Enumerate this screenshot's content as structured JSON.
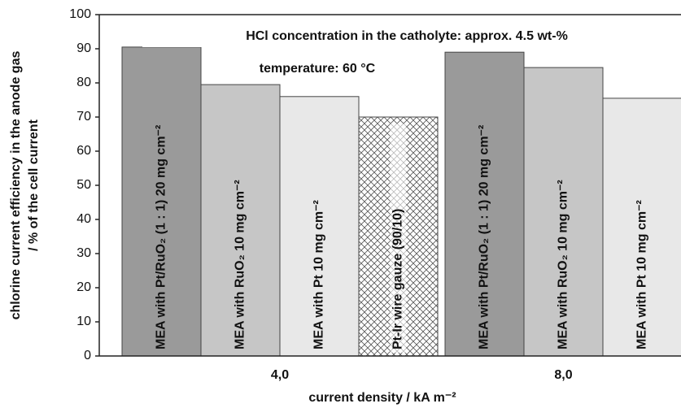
{
  "chart_data": {
    "type": "bar",
    "categories": [
      "4,0",
      "8,0"
    ],
    "series": [
      {
        "name": "MEA with Pt/RuO₂ (1 : 1) 20 mg cm⁻²",
        "color": "#9a9a9a",
        "values": [
          90.5,
          89
        ]
      },
      {
        "name": "MEA with RuO₂  10 mg cm⁻²",
        "color": "#c6c6c6",
        "values": [
          79.5,
          84.5
        ]
      },
      {
        "name": "MEA with Pt  10 mg cm⁻²",
        "color": "#e8e8e8",
        "values": [
          76,
          75.5
        ]
      },
      {
        "name": "Pt-Ir wire gauze (90/10)",
        "color": "#ffffff",
        "hatch": true,
        "values": [
          70,
          null
        ]
      }
    ],
    "xlabel": "current density  / kA m⁻²",
    "ylabel": [
      "chlorine current efficiency in the anode gas",
      "/ % of the cell current"
    ],
    "annotations": [
      "HCl concentration in the catholyte: approx. 4.5 wt-%",
      "temperature:  60 °C"
    ],
    "ylim": [
      0,
      100
    ],
    "yticks": [
      0,
      10,
      20,
      30,
      40,
      50,
      60,
      70,
      80,
      90,
      100
    ],
    "grid": false
  }
}
